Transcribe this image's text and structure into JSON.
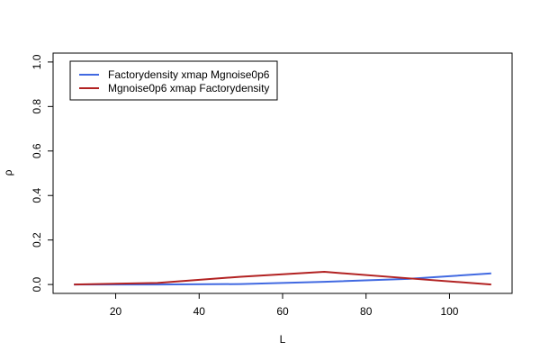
{
  "chart_data": {
    "type": "line",
    "xlabel": "L",
    "ylabel": "ρ",
    "xlim": [
      5,
      115
    ],
    "ylim": [
      -0.04,
      1.04
    ],
    "xticks": [
      20,
      40,
      60,
      80,
      100
    ],
    "yticks": [
      0.0,
      0.2,
      0.4,
      0.6,
      0.8,
      1.0
    ],
    "ytick_labels": [
      "0.0",
      "0.2",
      "0.4",
      "0.6",
      "0.8",
      "1.0"
    ],
    "grid": false,
    "legend_position": "top-left",
    "series": [
      {
        "name": "Factorydensity xmap Mgnoise0p6",
        "color": "#4169E1",
        "x": [
          10,
          30,
          50,
          70,
          90,
          110
        ],
        "y": [
          0.0,
          0.0,
          0.002,
          0.012,
          0.025,
          0.05
        ]
      },
      {
        "name": "Mgnoise0p6 xmap Factorydensity",
        "color": "#B22222",
        "x": [
          10,
          30,
          50,
          70,
          90,
          110
        ],
        "y": [
          0.0,
          0.007,
          0.035,
          0.057,
          0.028,
          0.0
        ]
      }
    ]
  }
}
